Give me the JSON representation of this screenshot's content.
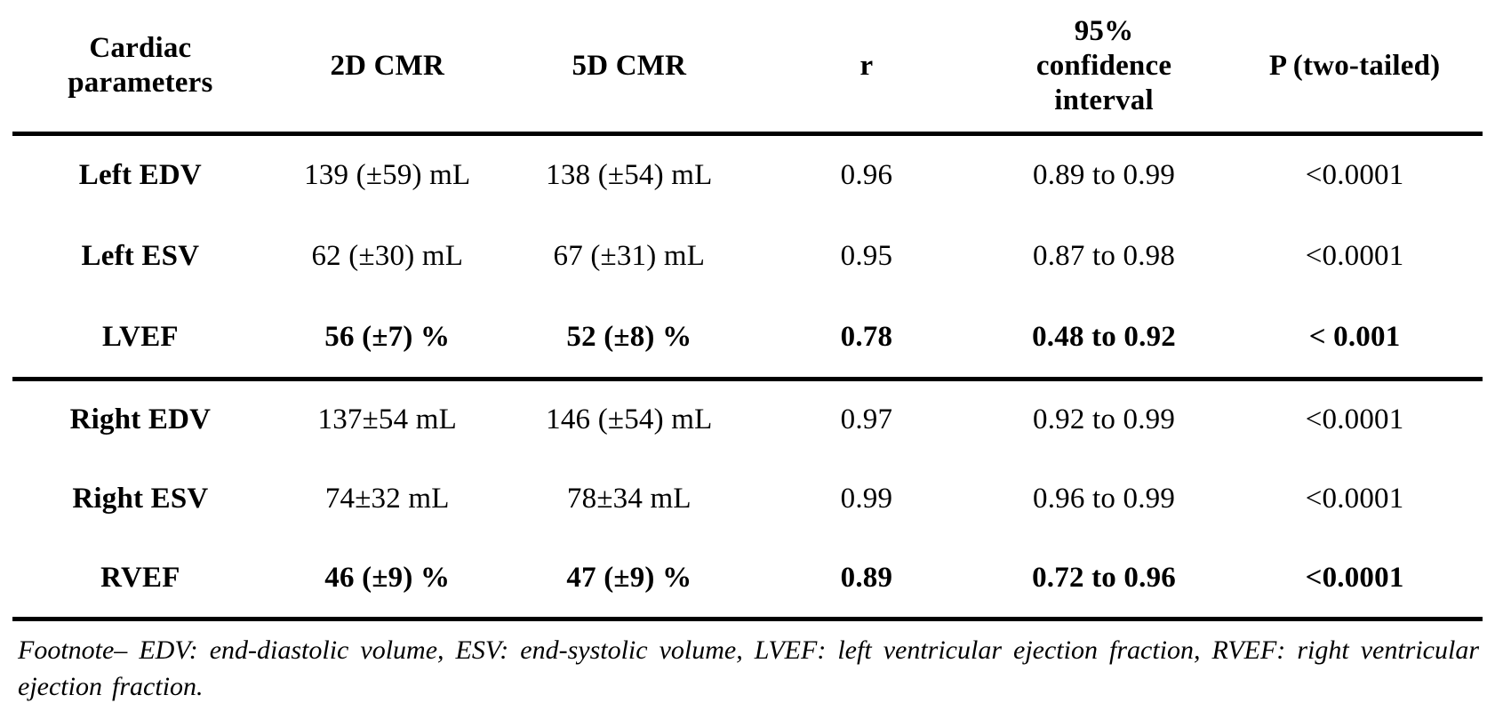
{
  "table": {
    "columns": [
      "Cardiac\nparameters",
      "2D CMR",
      "5D CMR",
      "r",
      "95%\nconfidence\ninterval",
      "P (two-tailed)"
    ],
    "rows": [
      {
        "parameter": "Left EDV",
        "cmr2d": "139 (±59) mL",
        "cmr5d": "138 (±54) mL",
        "r": "0.96",
        "ci": "0.89 to 0.99",
        "p": "<0.0001"
      },
      {
        "parameter": "Left ESV",
        "cmr2d": "62 (±30) mL",
        "cmr5d": "67 (±31) mL",
        "r": "0.95",
        "ci": "0.87 to 0.98",
        "p": "<0.0001"
      },
      {
        "parameter": "LVEF",
        "cmr2d": "56 (±7) %",
        "cmr5d": "52 (±8) %",
        "r": "0.78",
        "ci": "0.48 to 0.92",
        "p": "< 0.001"
      },
      {
        "parameter": "Right EDV",
        "cmr2d": "137±54 mL",
        "cmr5d": "146 (±54) mL",
        "r": "0.97",
        "ci": "0.92 to 0.99",
        "p": "<0.0001"
      },
      {
        "parameter": "Right ESV",
        "cmr2d": "74±32 mL",
        "cmr5d": "78±34 mL",
        "r": "0.99",
        "ci": "0.96 to 0.99",
        "p": "<0.0001"
      },
      {
        "parameter": "RVEF",
        "cmr2d": "46 (±9) %",
        "cmr5d": "47 (±9) %",
        "r": "0.89",
        "ci": "0.72 to 0.96",
        "p": "<0.0001"
      }
    ]
  },
  "footnote": "Footnote– EDV: end-diastolic volume, ESV: end-systolic volume, LVEF: left ventricular ejection fraction, RVEF: right ventricular ejection fraction."
}
